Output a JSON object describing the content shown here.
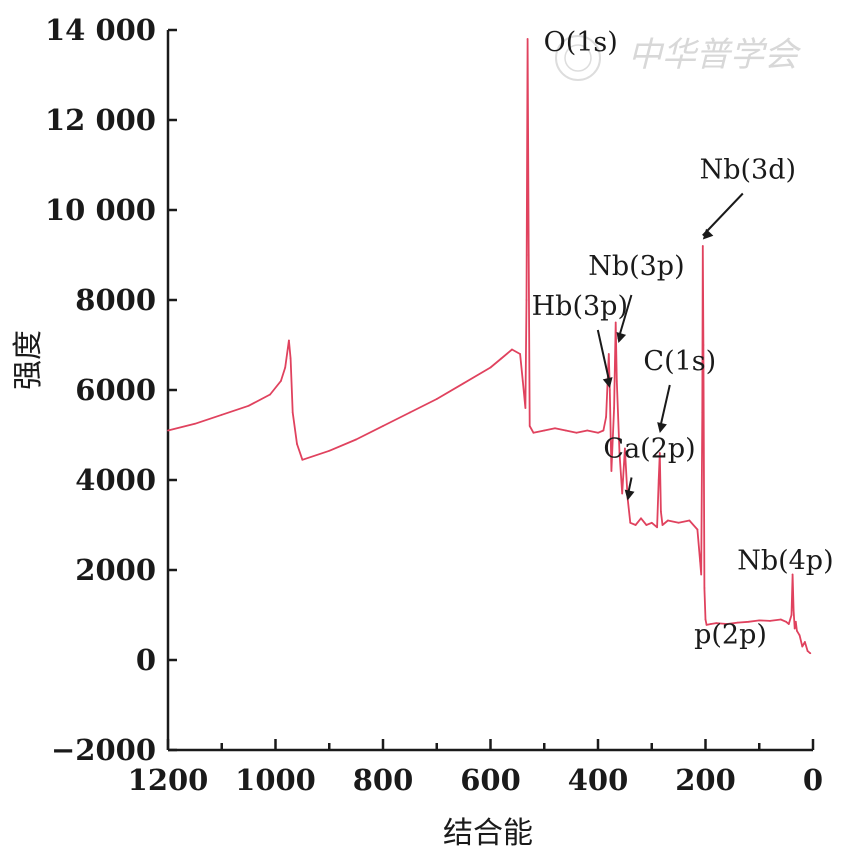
{
  "chart_data": {
    "type": "line",
    "title": "",
    "xlabel": "结合能",
    "ylabel": "强度",
    "xlim": [
      1200,
      0
    ],
    "ylim": [
      -2000,
      14000
    ],
    "xticks": [
      1200,
      1000,
      800,
      600,
      400,
      200,
      0
    ],
    "xtick_labels": [
      "1200",
      "1000",
      "800",
      "600",
      "400",
      "200",
      "0"
    ],
    "yticks": [
      -2000,
      0,
      2000,
      4000,
      6000,
      8000,
      10000,
      12000,
      14000
    ],
    "ytick_labels": [
      "−2000",
      "0",
      "2000",
      "4000",
      "6000",
      "8000",
      "10 000",
      "12 000",
      "14 000"
    ],
    "grid": false,
    "series": [
      {
        "color": "#e0425e",
        "x": [
          1200,
          1150,
          1100,
          1050,
          1010,
          990,
          982,
          975,
          972,
          968,
          960,
          950,
          900,
          850,
          800,
          750,
          700,
          650,
          600,
          580,
          560,
          545,
          540,
          535,
          533,
          531,
          529,
          527,
          520,
          500,
          480,
          460,
          440,
          420,
          400,
          390,
          385,
          380,
          378,
          375,
          370,
          367,
          365,
          360,
          355,
          350,
          345,
          340,
          330,
          320,
          310,
          300,
          290,
          287,
          285,
          283,
          280,
          270,
          250,
          230,
          215,
          210,
          208,
          206,
          205,
          204,
          202,
          200,
          198,
          190,
          180,
          160,
          140,
          120,
          100,
          80,
          60,
          50,
          45,
          40,
          38,
          36,
          34,
          32,
          30,
          25,
          20,
          15,
          10,
          5
        ],
        "y": [
          5100,
          5250,
          5450,
          5650,
          5900,
          6200,
          6500,
          7100,
          6700,
          5500,
          4800,
          4450,
          4650,
          4900,
          5200,
          5500,
          5800,
          6150,
          6500,
          6700,
          6900,
          6800,
          6200,
          5600,
          8000,
          13800,
          9000,
          5200,
          5050,
          5100,
          5150,
          5100,
          5050,
          5100,
          5050,
          5100,
          5400,
          6800,
          6000,
          4200,
          5600,
          7500,
          6200,
          4600,
          3700,
          4700,
          3600,
          3050,
          3000,
          3150,
          3000,
          3050,
          2950,
          4000,
          4600,
          3300,
          3000,
          3100,
          3050,
          3100,
          2900,
          2200,
          1900,
          5500,
          9200,
          7000,
          1600,
          900,
          780,
          800,
          820,
          800,
          830,
          850,
          880,
          870,
          900,
          850,
          800,
          1000,
          1900,
          1100,
          700,
          850,
          650,
          550,
          300,
          400,
          200,
          150
        ]
      }
    ],
    "annotations": [
      {
        "text": "O(1s)",
        "x": 531,
        "y": 13800
      },
      {
        "text": "Nb(3d)",
        "x": 205,
        "y": 9300
      },
      {
        "text": "Nb(3p)",
        "x": 362,
        "y": 7000
      },
      {
        "text": "Hb(3p)",
        "x": 378,
        "y": 6000
      },
      {
        "text": "C(1s)",
        "x": 285,
        "y": 5000
      },
      {
        "text": "Ca(2p)",
        "x": 345,
        "y": 3500
      },
      {
        "text": "p(2p)",
        "x": 200,
        "y": 1300
      },
      {
        "text": "Nb(4p)",
        "x": 36,
        "y": 1900
      }
    ],
    "watermark": "中华普学会"
  }
}
